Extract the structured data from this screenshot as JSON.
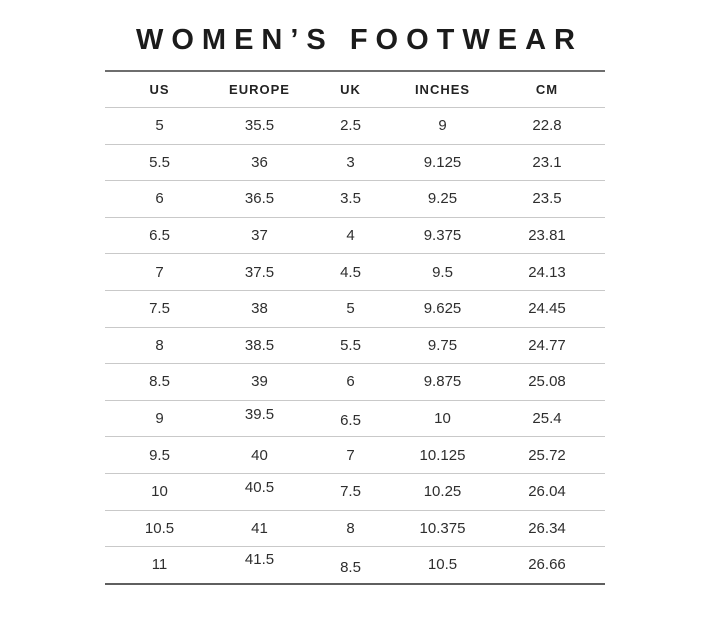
{
  "title": "WOMEN’S FOOTWEAR",
  "chart_data": {
    "type": "table",
    "title": "WOMEN’S FOOTWEAR",
    "columns": [
      "US",
      "EUROPE",
      "UK",
      "INCHES",
      "CM"
    ],
    "rows": [
      [
        5,
        35.5,
        2.5,
        9,
        22.8
      ],
      [
        5.5,
        36,
        3,
        9.125,
        23.1
      ],
      [
        6,
        36.5,
        3.5,
        9.25,
        23.5
      ],
      [
        6.5,
        37,
        4,
        9.375,
        23.81
      ],
      [
        7,
        37.5,
        4.5,
        9.5,
        24.13
      ],
      [
        7.5,
        38,
        5,
        9.625,
        24.45
      ],
      [
        8,
        38.5,
        5.5,
        9.75,
        24.77
      ],
      [
        8.5,
        39,
        6,
        9.875,
        25.08
      ],
      [
        9,
        39.5,
        6.5,
        10,
        25.4
      ],
      [
        9.5,
        40,
        7,
        10.125,
        25.72
      ],
      [
        10,
        40.5,
        7.5,
        10.25,
        26.04
      ],
      [
        10.5,
        41,
        8,
        10.375,
        26.34
      ],
      [
        11,
        41.5,
        8.5,
        10.5,
        26.66
      ]
    ]
  }
}
